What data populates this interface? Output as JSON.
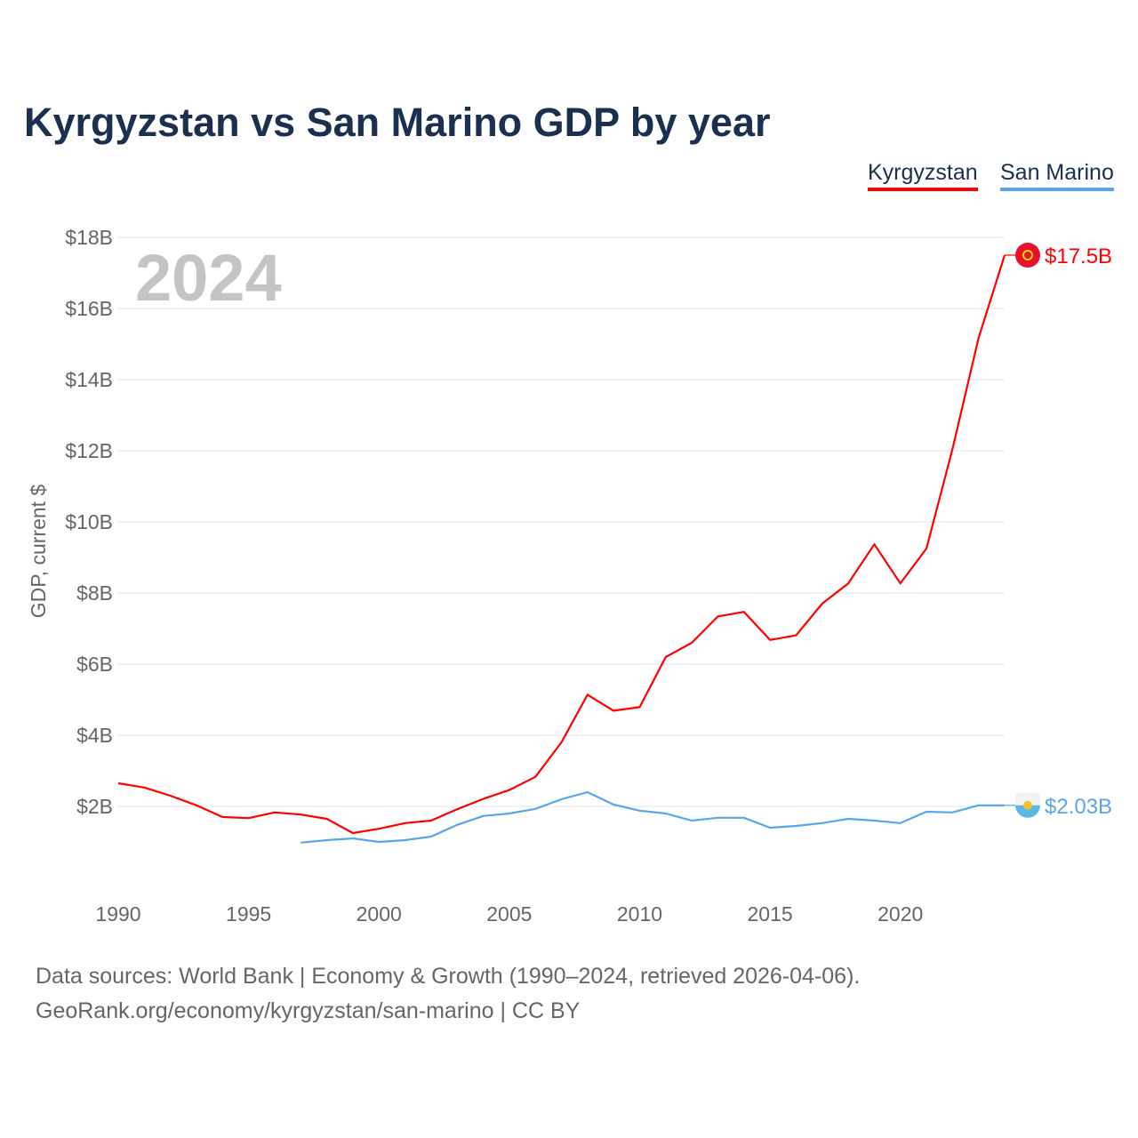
{
  "title": "Kyrgyzstan vs San Marino GDP by year",
  "year_watermark": "2024",
  "sources": {
    "line1": "Data sources: World Bank | Economy & Growth (1990–2024, retrieved 2026-04-06).",
    "line2": "GeoRank.org/economy/kyrgyzstan/san-marino | CC BY"
  },
  "chart_data": {
    "type": "line",
    "title": "Kyrgyzstan vs San Marino GDP by year",
    "xlabel": "",
    "ylabel": "GDP, current $",
    "ylim": [
      0,
      18
    ],
    "xlim": [
      1990,
      2024
    ],
    "grid": true,
    "legend_placement": "top-right",
    "y_ticks": [
      {
        "v": 2,
        "label": "$2B"
      },
      {
        "v": 4,
        "label": "$4B"
      },
      {
        "v": 6,
        "label": "$6B"
      },
      {
        "v": 8,
        "label": "$8B"
      },
      {
        "v": 10,
        "label": "$10B"
      },
      {
        "v": 12,
        "label": "$12B"
      },
      {
        "v": 14,
        "label": "$14B"
      },
      {
        "v": 16,
        "label": "$16B"
      },
      {
        "v": 18,
        "label": "$18B"
      }
    ],
    "x_ticks": [
      {
        "v": 1990,
        "label": "1990"
      },
      {
        "v": 1995,
        "label": "1995"
      },
      {
        "v": 2000,
        "label": "2000"
      },
      {
        "v": 2005,
        "label": "2005"
      },
      {
        "v": 2010,
        "label": "2010"
      },
      {
        "v": 2015,
        "label": "2015"
      },
      {
        "v": 2020,
        "label": "2020"
      }
    ],
    "series": [
      {
        "name": "Kyrgyzstan",
        "color": "#ff0000",
        "end_label": "$17.5B",
        "flag_color": "#e8112d",
        "x": [
          1990,
          1991,
          1992,
          1993,
          1994,
          1995,
          1996,
          1997,
          1998,
          1999,
          2000,
          2001,
          2002,
          2003,
          2004,
          2005,
          2006,
          2007,
          2008,
          2009,
          2010,
          2011,
          2012,
          2013,
          2014,
          2015,
          2016,
          2017,
          2018,
          2019,
          2020,
          2021,
          2022,
          2023,
          2024
        ],
        "values": [
          2.65,
          2.53,
          2.3,
          2.03,
          1.7,
          1.67,
          1.83,
          1.77,
          1.65,
          1.25,
          1.37,
          1.53,
          1.6,
          1.92,
          2.21,
          2.46,
          2.83,
          3.8,
          5.14,
          4.69,
          4.79,
          6.2,
          6.6,
          7.34,
          7.47,
          6.68,
          6.81,
          7.7,
          8.27,
          9.37,
          8.27,
          9.25,
          12.05,
          15.17,
          17.5
        ]
      },
      {
        "name": "San Marino",
        "color": "#5aa5ec",
        "end_label": "$2.03B",
        "flag_color": "#5eb6e4",
        "x": [
          1997,
          1998,
          1999,
          2000,
          2001,
          2002,
          2003,
          2004,
          2005,
          2006,
          2007,
          2008,
          2009,
          2010,
          2011,
          2012,
          2013,
          2014,
          2015,
          2016,
          2017,
          2018,
          2019,
          2020,
          2021,
          2022,
          2023,
          2024
        ],
        "values": [
          0.98,
          1.05,
          1.1,
          1.0,
          1.05,
          1.15,
          1.48,
          1.73,
          1.8,
          1.93,
          2.2,
          2.4,
          2.05,
          1.88,
          1.8,
          1.6,
          1.68,
          1.68,
          1.4,
          1.45,
          1.53,
          1.65,
          1.6,
          1.53,
          1.85,
          1.83,
          2.03,
          2.03
        ]
      }
    ]
  }
}
